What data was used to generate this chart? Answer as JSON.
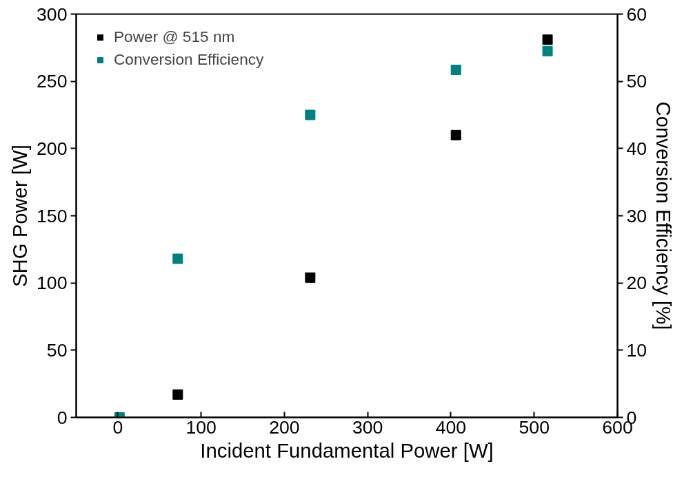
{
  "chart_data": {
    "type": "scatter",
    "xlabel": "Incident Fundamental Power [W]",
    "ylabel": "SHG Power [W]",
    "y2label": "Conversion Efficiency [%]",
    "xlim": [
      -50,
      600
    ],
    "xticks": [
      0,
      100,
      200,
      300,
      400,
      500,
      600
    ],
    "ylim": [
      0,
      300
    ],
    "yticks": [
      0,
      50,
      100,
      150,
      200,
      250,
      300
    ],
    "y2lim": [
      0,
      60
    ],
    "y2ticks": [
      0,
      10,
      20,
      30,
      40,
      50,
      60
    ],
    "marker": "square",
    "grid": false,
    "legend": "top left",
    "series": [
      {
        "name": "Power @ 515 nm",
        "color": "#000000",
        "x": [
          72,
          231,
          406,
          516
        ],
        "values": [
          17,
          104,
          210,
          281
        ]
      },
      {
        "name": "Conversion Efficiency",
        "color": "#008080",
        "axis": "y2",
        "x": [
          2,
          72,
          231,
          406,
          516
        ],
        "values": [
          0,
          23.6,
          45.0,
          51.7,
          54.5
        ]
      }
    ]
  }
}
